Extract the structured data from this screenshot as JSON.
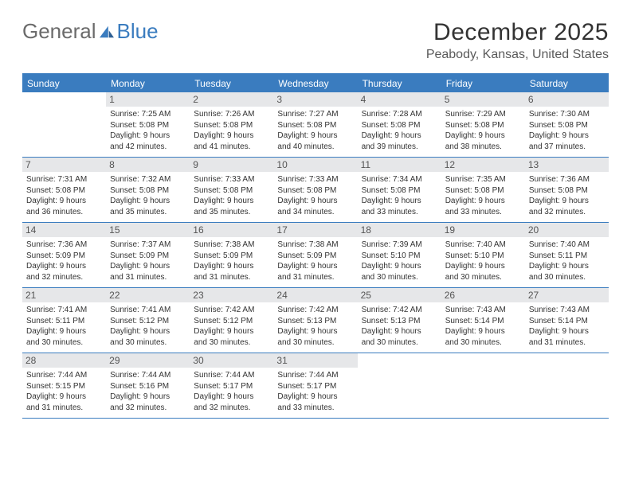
{
  "brand": {
    "part1": "General",
    "part2": "Blue"
  },
  "title": "December 2025",
  "subtitle": "Peabody, Kansas, United States",
  "colors": {
    "header_bg": "#3a7cbf",
    "header_text": "#ffffff",
    "daynum_bg": "#e6e7e9",
    "rule": "#3a7cbf",
    "text": "#333333",
    "brand_gray": "#6b6b6b",
    "brand_blue": "#3a7cbf",
    "page_bg": "#ffffff"
  },
  "font": {
    "family": "Arial",
    "daynum_size": 12,
    "info_size": 10,
    "title_size": 30,
    "subtitle_size": 16
  },
  "dayNames": [
    "Sunday",
    "Monday",
    "Tuesday",
    "Wednesday",
    "Thursday",
    "Friday",
    "Saturday"
  ],
  "weeks": [
    [
      {
        "empty": true
      },
      {
        "n": "1",
        "sr": "Sunrise: 7:25 AM",
        "ss": "Sunset: 5:08 PM",
        "d1": "Daylight: 9 hours",
        "d2": "and 42 minutes."
      },
      {
        "n": "2",
        "sr": "Sunrise: 7:26 AM",
        "ss": "Sunset: 5:08 PM",
        "d1": "Daylight: 9 hours",
        "d2": "and 41 minutes."
      },
      {
        "n": "3",
        "sr": "Sunrise: 7:27 AM",
        "ss": "Sunset: 5:08 PM",
        "d1": "Daylight: 9 hours",
        "d2": "and 40 minutes."
      },
      {
        "n": "4",
        "sr": "Sunrise: 7:28 AM",
        "ss": "Sunset: 5:08 PM",
        "d1": "Daylight: 9 hours",
        "d2": "and 39 minutes."
      },
      {
        "n": "5",
        "sr": "Sunrise: 7:29 AM",
        "ss": "Sunset: 5:08 PM",
        "d1": "Daylight: 9 hours",
        "d2": "and 38 minutes."
      },
      {
        "n": "6",
        "sr": "Sunrise: 7:30 AM",
        "ss": "Sunset: 5:08 PM",
        "d1": "Daylight: 9 hours",
        "d2": "and 37 minutes."
      }
    ],
    [
      {
        "n": "7",
        "sr": "Sunrise: 7:31 AM",
        "ss": "Sunset: 5:08 PM",
        "d1": "Daylight: 9 hours",
        "d2": "and 36 minutes."
      },
      {
        "n": "8",
        "sr": "Sunrise: 7:32 AM",
        "ss": "Sunset: 5:08 PM",
        "d1": "Daylight: 9 hours",
        "d2": "and 35 minutes."
      },
      {
        "n": "9",
        "sr": "Sunrise: 7:33 AM",
        "ss": "Sunset: 5:08 PM",
        "d1": "Daylight: 9 hours",
        "d2": "and 35 minutes."
      },
      {
        "n": "10",
        "sr": "Sunrise: 7:33 AM",
        "ss": "Sunset: 5:08 PM",
        "d1": "Daylight: 9 hours",
        "d2": "and 34 minutes."
      },
      {
        "n": "11",
        "sr": "Sunrise: 7:34 AM",
        "ss": "Sunset: 5:08 PM",
        "d1": "Daylight: 9 hours",
        "d2": "and 33 minutes."
      },
      {
        "n": "12",
        "sr": "Sunrise: 7:35 AM",
        "ss": "Sunset: 5:08 PM",
        "d1": "Daylight: 9 hours",
        "d2": "and 33 minutes."
      },
      {
        "n": "13",
        "sr": "Sunrise: 7:36 AM",
        "ss": "Sunset: 5:08 PM",
        "d1": "Daylight: 9 hours",
        "d2": "and 32 minutes."
      }
    ],
    [
      {
        "n": "14",
        "sr": "Sunrise: 7:36 AM",
        "ss": "Sunset: 5:09 PM",
        "d1": "Daylight: 9 hours",
        "d2": "and 32 minutes."
      },
      {
        "n": "15",
        "sr": "Sunrise: 7:37 AM",
        "ss": "Sunset: 5:09 PM",
        "d1": "Daylight: 9 hours",
        "d2": "and 31 minutes."
      },
      {
        "n": "16",
        "sr": "Sunrise: 7:38 AM",
        "ss": "Sunset: 5:09 PM",
        "d1": "Daylight: 9 hours",
        "d2": "and 31 minutes."
      },
      {
        "n": "17",
        "sr": "Sunrise: 7:38 AM",
        "ss": "Sunset: 5:09 PM",
        "d1": "Daylight: 9 hours",
        "d2": "and 31 minutes."
      },
      {
        "n": "18",
        "sr": "Sunrise: 7:39 AM",
        "ss": "Sunset: 5:10 PM",
        "d1": "Daylight: 9 hours",
        "d2": "and 30 minutes."
      },
      {
        "n": "19",
        "sr": "Sunrise: 7:40 AM",
        "ss": "Sunset: 5:10 PM",
        "d1": "Daylight: 9 hours",
        "d2": "and 30 minutes."
      },
      {
        "n": "20",
        "sr": "Sunrise: 7:40 AM",
        "ss": "Sunset: 5:11 PM",
        "d1": "Daylight: 9 hours",
        "d2": "and 30 minutes."
      }
    ],
    [
      {
        "n": "21",
        "sr": "Sunrise: 7:41 AM",
        "ss": "Sunset: 5:11 PM",
        "d1": "Daylight: 9 hours",
        "d2": "and 30 minutes."
      },
      {
        "n": "22",
        "sr": "Sunrise: 7:41 AM",
        "ss": "Sunset: 5:12 PM",
        "d1": "Daylight: 9 hours",
        "d2": "and 30 minutes."
      },
      {
        "n": "23",
        "sr": "Sunrise: 7:42 AM",
        "ss": "Sunset: 5:12 PM",
        "d1": "Daylight: 9 hours",
        "d2": "and 30 minutes."
      },
      {
        "n": "24",
        "sr": "Sunrise: 7:42 AM",
        "ss": "Sunset: 5:13 PM",
        "d1": "Daylight: 9 hours",
        "d2": "and 30 minutes."
      },
      {
        "n": "25",
        "sr": "Sunrise: 7:42 AM",
        "ss": "Sunset: 5:13 PM",
        "d1": "Daylight: 9 hours",
        "d2": "and 30 minutes."
      },
      {
        "n": "26",
        "sr": "Sunrise: 7:43 AM",
        "ss": "Sunset: 5:14 PM",
        "d1": "Daylight: 9 hours",
        "d2": "and 30 minutes."
      },
      {
        "n": "27",
        "sr": "Sunrise: 7:43 AM",
        "ss": "Sunset: 5:14 PM",
        "d1": "Daylight: 9 hours",
        "d2": "and 31 minutes."
      }
    ],
    [
      {
        "n": "28",
        "sr": "Sunrise: 7:44 AM",
        "ss": "Sunset: 5:15 PM",
        "d1": "Daylight: 9 hours",
        "d2": "and 31 minutes."
      },
      {
        "n": "29",
        "sr": "Sunrise: 7:44 AM",
        "ss": "Sunset: 5:16 PM",
        "d1": "Daylight: 9 hours",
        "d2": "and 32 minutes."
      },
      {
        "n": "30",
        "sr": "Sunrise: 7:44 AM",
        "ss": "Sunset: 5:17 PM",
        "d1": "Daylight: 9 hours",
        "d2": "and 32 minutes."
      },
      {
        "n": "31",
        "sr": "Sunrise: 7:44 AM",
        "ss": "Sunset: 5:17 PM",
        "d1": "Daylight: 9 hours",
        "d2": "and 33 minutes."
      },
      {
        "empty": true
      },
      {
        "empty": true
      },
      {
        "empty": true
      }
    ]
  ]
}
